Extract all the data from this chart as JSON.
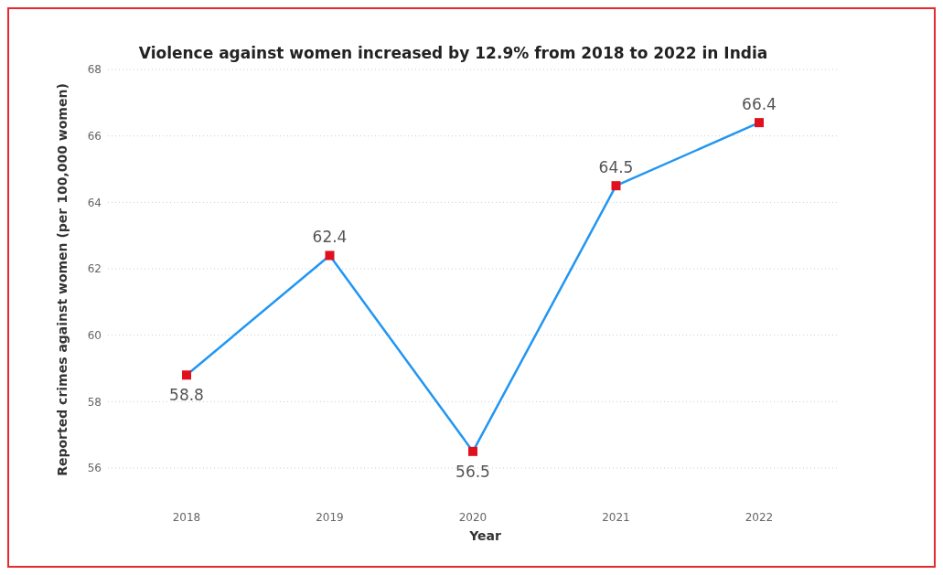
{
  "chart_data": {
    "type": "line",
    "title": "Violence against women increased by 12.9% from 2018 to 2022 in India",
    "xlabel": "Year",
    "ylabel": "Reported crimes against women (per 100,000 women)",
    "categories": [
      "2018",
      "2019",
      "2020",
      "2021",
      "2022"
    ],
    "series": [
      {
        "color": "#2196f3",
        "colors": [
          "#e0101e",
          "#e0101e",
          "#e0101e",
          "#e0101e",
          "#e0101e"
        ],
        "values": [
          58.8,
          62.4,
          56.5,
          64.5,
          66.4
        ]
      }
    ],
    "ylim": [
      56,
      68
    ],
    "yticks": [
      56,
      58,
      60,
      62,
      64,
      66,
      68
    ],
    "grid": "y",
    "marker": "square",
    "line_style": "solid",
    "data_labels": true
  }
}
